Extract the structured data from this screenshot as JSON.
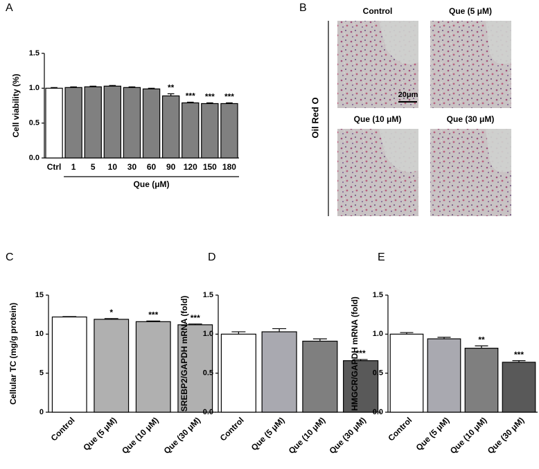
{
  "chart_data": [
    {
      "type": "bar",
      "panel_label": "A",
      "ylabel": "Cell viability (%)",
      "xlabel": "Que (μM)",
      "categories": [
        "Ctrl",
        "1",
        "5",
        "10",
        "30",
        "60",
        "90",
        "120",
        "150",
        "180"
      ],
      "values": [
        1.0,
        1.01,
        1.02,
        1.03,
        1.01,
        0.99,
        0.89,
        0.79,
        0.78,
        0.78
      ],
      "errors": [
        0.01,
        0.01,
        0.01,
        0.01,
        0.01,
        0.01,
        0.03,
        0.01,
        0.01,
        0.01
      ],
      "annotations": [
        null,
        null,
        null,
        null,
        null,
        null,
        "**",
        "***",
        "***",
        "***"
      ],
      "colors": [
        "#ffffff",
        "#808080",
        "#808080",
        "#808080",
        "#808080",
        "#808080",
        "#808080",
        "#808080",
        "#808080",
        "#808080"
      ],
      "ylim": [
        0,
        1.5
      ],
      "yticks": [
        {
          "value": 0,
          "label": "0.0"
        },
        0.5,
        {
          "value": 1,
          "label": "1.0"
        },
        1.5
      ]
    },
    {
      "type": "bar",
      "panel_label": "C",
      "ylabel": "Cellular TC (mg/g protein)",
      "categories": [
        "Control",
        "Que (5 μM)",
        "Que (10 μM)",
        "Que (30 μM)"
      ],
      "values": [
        12.2,
        11.9,
        11.6,
        11.2
      ],
      "errors": [
        0.05,
        0.1,
        0.08,
        0.1
      ],
      "annotations": [
        null,
        "*",
        "***",
        "***"
      ],
      "colors": [
        "#ffffff",
        "#b0b0b0",
        "#b0b0b0",
        "#b0b0b0"
      ],
      "ylim": [
        0,
        15
      ],
      "yticks": [
        0,
        5,
        10,
        15
      ]
    },
    {
      "type": "bar",
      "panel_label": "D",
      "ylabel": "SREBP2/GAPDH mRNA (fold)",
      "categories": [
        "Control",
        "Que (5 μM)",
        "Que (10 μM)",
        "Que (30 μM)"
      ],
      "values": [
        1.0,
        1.03,
        0.91,
        0.66
      ],
      "errors": [
        0.03,
        0.04,
        0.03,
        0.015
      ],
      "annotations": [
        null,
        null,
        null,
        "***"
      ],
      "colors": [
        "#ffffff",
        "#a9a9b0",
        "#7f7f7f",
        "#595959"
      ],
      "ylim": [
        0,
        1.5
      ],
      "yticks": [
        {
          "value": 0,
          "label": "0.0"
        },
        0.5,
        {
          "value": 1,
          "label": "1.0"
        },
        1.5
      ]
    },
    {
      "type": "bar",
      "panel_label": "E",
      "ylabel": "HMGCR/GAPDH mRNA (fold)",
      "categories": [
        "Control",
        "Que (5 μM)",
        "Que (10 μM)",
        "Que (30 μM)"
      ],
      "values": [
        1.0,
        0.94,
        0.82,
        0.64
      ],
      "errors": [
        0.02,
        0.02,
        0.03,
        0.02
      ],
      "annotations": [
        null,
        null,
        "**",
        "***"
      ],
      "colors": [
        "#ffffff",
        "#a9a9b0",
        "#7f7f7f",
        "#595959"
      ],
      "ylim": [
        0,
        1.5
      ],
      "yticks": [
        {
          "value": 0,
          "label": "0.0"
        },
        0.5,
        {
          "value": 1,
          "label": "1.0"
        },
        1.5
      ]
    }
  ],
  "image_panel": {
    "panel_label": "B",
    "side_label": "Oil Red O",
    "scale_bar": "20μm",
    "images": [
      "Control",
      "Que (5 μM)",
      "Que (10 μM)",
      "Que (30 μM)"
    ]
  }
}
